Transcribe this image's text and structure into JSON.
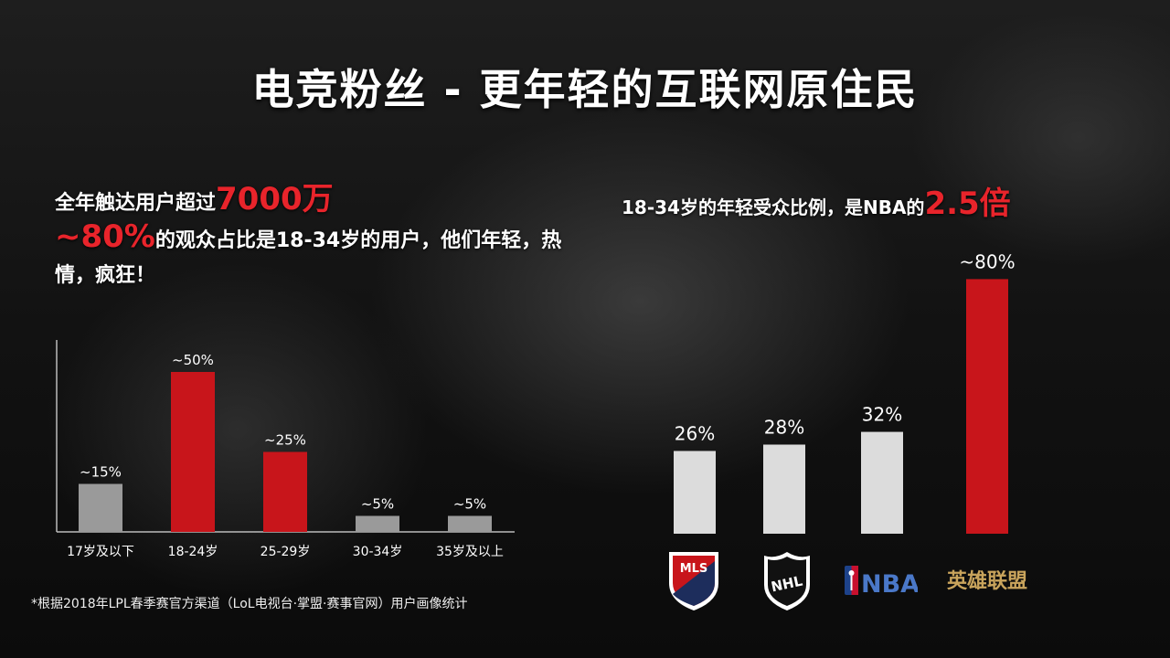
{
  "title": "电竞粉丝 - 更年轻的互联网原住民",
  "left_text": {
    "line1_prefix": "全年触达用户超过",
    "line1_highlight": "7000万",
    "line2_highlight": "~80%",
    "line2_rest": "的观众占比是18-34岁的用户，他们年轻，热情，疯狂！"
  },
  "right_text": {
    "prefix": "18-34岁的年轻受众比例，是NBA的",
    "highlight": "2.5倍"
  },
  "footnote": "*根据2018年LPL春季赛官方渠道（LoL电视台·掌盟·赛事官网）用户画像统计",
  "logos": {
    "mls": "MLS",
    "nhl": "NHL",
    "nba": "NBA",
    "lol": "英雄联盟"
  },
  "colors": {
    "accent_red": "#c8151b",
    "bar_gray": "#9a9a9a",
    "bar_light": "#dcdcdc",
    "text_red": "#e8242b"
  },
  "chart_data": [
    {
      "type": "bar",
      "categories": [
        "17岁及以下",
        "18-24岁",
        "25-29岁",
        "30-34岁",
        "35岁及以上"
      ],
      "values": [
        15,
        50,
        25,
        5,
        5
      ],
      "labels": [
        "~15%",
        "~50%",
        "~25%",
        "~5%",
        "~5%"
      ],
      "highlight": [
        false,
        true,
        true,
        false,
        false
      ],
      "ylim": [
        0,
        60
      ]
    },
    {
      "type": "bar",
      "categories": [
        "MLS",
        "NHL",
        "NBA",
        "英雄联盟"
      ],
      "values": [
        26,
        28,
        32,
        80
      ],
      "labels": [
        "26%",
        "28%",
        "32%",
        "~80%"
      ],
      "highlight": [
        false,
        false,
        false,
        true
      ],
      "ylim": [
        0,
        85
      ]
    }
  ]
}
